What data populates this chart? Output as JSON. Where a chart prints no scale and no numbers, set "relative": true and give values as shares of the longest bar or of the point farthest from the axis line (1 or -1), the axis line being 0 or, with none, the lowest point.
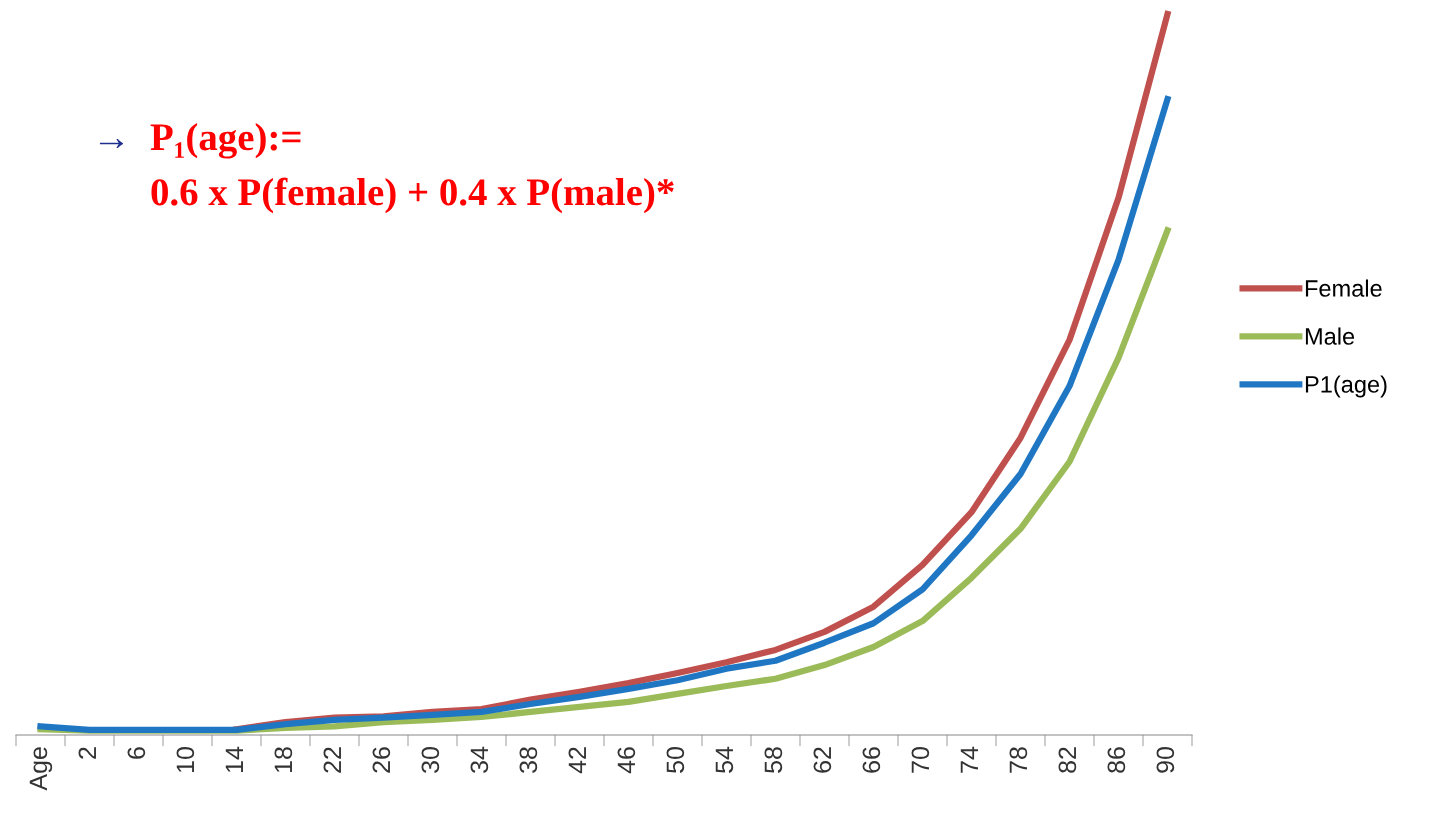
{
  "chart_data": {
    "type": "line",
    "relative": true,
    "legend": "right",
    "grid": false,
    "marker": "none",
    "line_style": "solid",
    "categories": [
      "Age",
      "2",
      "6",
      "10",
      "14",
      "18",
      "22",
      "26",
      "30",
      "34",
      "38",
      "42",
      "46",
      "50",
      "54",
      "58",
      "62",
      "66",
      "70",
      "74",
      "78",
      "82",
      "86",
      "90"
    ],
    "series": [
      {
        "name": "Female",
        "color": "#c0504d",
        "values": [
          null,
          null,
          null,
          null,
          0.008,
          0.018,
          0.024,
          0.026,
          0.032,
          0.036,
          0.049,
          0.06,
          0.072,
          0.086,
          0.101,
          0.118,
          0.143,
          0.178,
          0.236,
          0.309,
          0.412,
          0.548,
          0.745,
          1
        ]
      },
      {
        "name": "Male",
        "color": "#9bbb59",
        "values": [
          0.008,
          0.006,
          0.006,
          0.006,
          0.006,
          0.01,
          0.012,
          0.018,
          0.021,
          0.025,
          0.032,
          0.039,
          0.046,
          0.057,
          0.068,
          0.078,
          0.097,
          0.122,
          0.158,
          0.218,
          0.286,
          0.379,
          0.523,
          0.7
        ]
      },
      {
        "name": "P1(age)",
        "color": "#1f77c4",
        "values": [
          0.012,
          0.007,
          0.007,
          0.007,
          0.007,
          0.015,
          0.021,
          0.024,
          0.028,
          0.032,
          0.043,
          0.053,
          0.064,
          0.076,
          0.092,
          0.103,
          0.128,
          0.155,
          0.202,
          0.277,
          0.362,
          0.484,
          0.659,
          0.882
        ]
      }
    ],
    "annotations": [
      "→",
      "P₁(age):=",
      "0.6 x P(female) + 0.4 x P(male)*"
    ]
  }
}
